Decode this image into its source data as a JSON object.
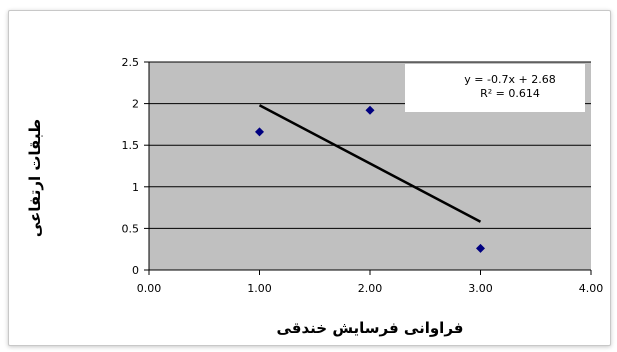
{
  "chart_data": {
    "type": "scatter",
    "title": "",
    "xlabel": "فراوانی فرسایش خندقی",
    "ylabel": "طبقات ارتفاعی",
    "xlim": [
      0,
      4
    ],
    "ylim": [
      0,
      2.5
    ],
    "x_ticks": [
      "0.00",
      "1.00",
      "2.00",
      "3.00",
      "4.00"
    ],
    "y_ticks": [
      "0",
      "0.5",
      "1",
      "1.5",
      "2",
      "2.5"
    ],
    "grid": true,
    "series": [
      {
        "points": [
          {
            "x": 1,
            "y": 1.66
          },
          {
            "x": 2,
            "y": 1.92
          },
          {
            "x": 3,
            "y": 0.26
          }
        ]
      }
    ],
    "trendline": {
      "type": "linear",
      "x_range": [
        1,
        3
      ],
      "slope": -0.7,
      "intercept": 2.68,
      "equation": "y = -0.7x + 2.68",
      "r_squared": "R² = 0.614"
    },
    "colors": {
      "plot_area": "#c0c0c0",
      "marker": "#000080",
      "trendline": "#000000",
      "grid": "#000000"
    }
  }
}
